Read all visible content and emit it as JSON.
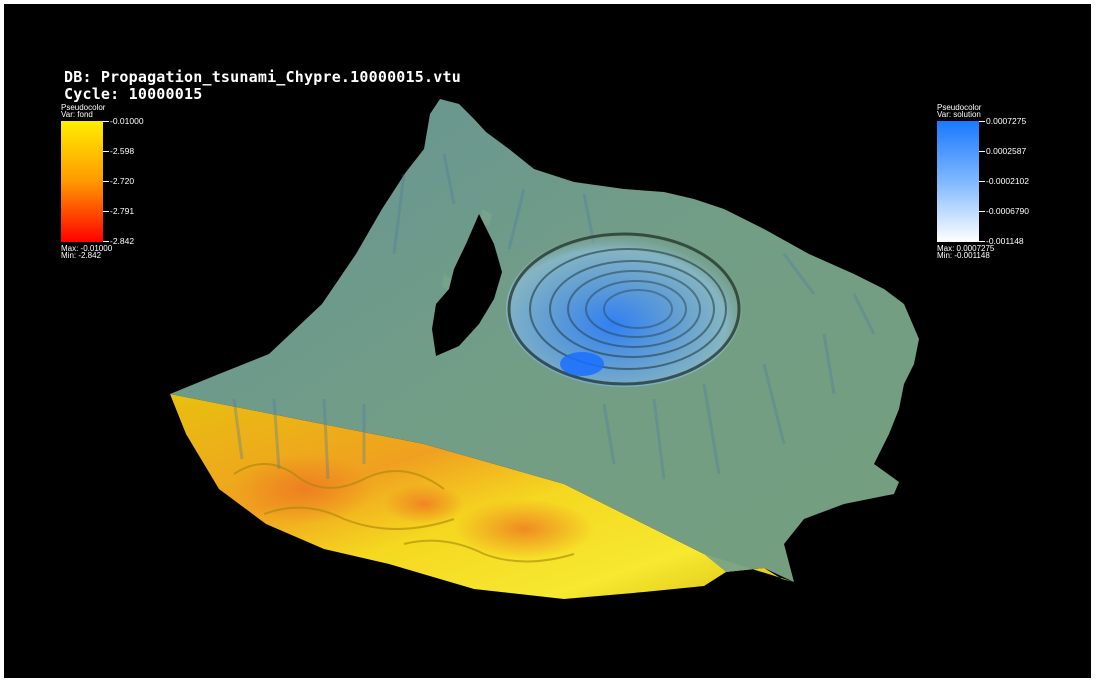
{
  "header": {
    "db_line": "DB: Propagation_tsunami_Chypre.10000015.vtu",
    "cycle_line": "Cycle: 10000015"
  },
  "legend_left": {
    "plot_type": "Pseudocolor",
    "var_label": "Var: fond",
    "ticks": [
      "-0.01000",
      "-2.598",
      "-2.720",
      "-2.791",
      "-2.842"
    ],
    "max_label": "Max: -0.01000",
    "min_label": "Min: -2.842",
    "colors": {
      "top": "#ffee00",
      "middle": "#ff9900",
      "bottom": "#ff0000"
    }
  },
  "legend_right": {
    "plot_type": "Pseudocolor",
    "var_label": "Var: solution",
    "ticks": [
      "0.0007275",
      "0.0002587",
      "-0.0002102",
      "-0.0006790",
      "-0.001148"
    ],
    "max_label": "Max: 0.0007275",
    "min_label": "Min: -0.001148",
    "colors": {
      "top": "#1a78ff",
      "middle": "#7fb8ff",
      "bottom": "#ffffff"
    }
  },
  "scene": {
    "water_color": "#6f9f8a",
    "seabed_color": "#e8cc10",
    "wave_color": "#4a8fe0"
  }
}
